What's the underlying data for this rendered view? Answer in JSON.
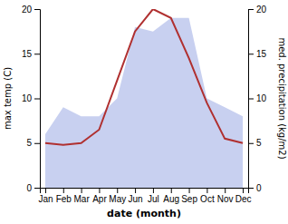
{
  "chart_data": {
    "type": "line",
    "categories": [
      "Jan",
      "Feb",
      "Mar",
      "Apr",
      "May",
      "Jun",
      "Jul",
      "Aug",
      "Sep",
      "Oct",
      "Nov",
      "Dec"
    ],
    "xlabel": "date (month)",
    "ylabel": "max temp (C)",
    "y2label": "med. precipitation (kg/m2)",
    "ylim": [
      0,
      20
    ],
    "yticks": [
      0,
      5,
      10,
      15,
      20
    ],
    "y2lim": [
      0,
      20
    ],
    "y2ticks": [
      0,
      5,
      10,
      15,
      20
    ],
    "series": [
      {
        "type": "area",
        "axis": "y2",
        "color": "#c8d0f0",
        "values": [
          6.0,
          9.0,
          8.0,
          8.0,
          10.0,
          18.0,
          17.5,
          19.0,
          19.0,
          10.0,
          9.0,
          8.0
        ]
      },
      {
        "type": "line",
        "axis": "y",
        "color": "#b03030",
        "values": [
          5.0,
          4.8,
          5.0,
          6.5,
          12.0,
          17.5,
          20.0,
          19.0,
          14.5,
          9.5,
          5.5,
          5.0
        ]
      }
    ]
  }
}
